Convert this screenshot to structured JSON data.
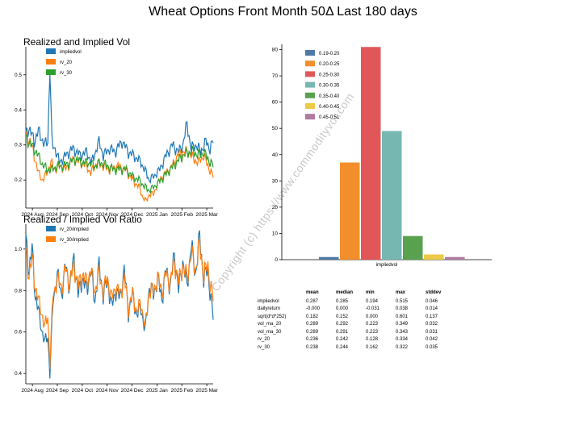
{
  "title": "Wheat Options Front Month 50Δ Last 180 days",
  "watermark": "Copyright (c) https://www.commodityvol.com",
  "colors": {
    "blue": "#1f77b4",
    "orange": "#ff7f0e",
    "green": "#2ca02c"
  },
  "chart_data": [
    {
      "type": "line",
      "title": "Realized and Implied Vol",
      "ylim": [
        0.12,
        0.58
      ],
      "yticks": [
        0.2,
        0.3,
        0.4,
        0.5
      ],
      "ytick_labels": [
        "0.2",
        "0.3",
        "0.4",
        "0.5"
      ],
      "xtick_labels": [
        "2024 Aug",
        "2024 Sep",
        "2024 Oct",
        "2024 Nov",
        "2024 Dec",
        "2025 Jan",
        "2025 Feb",
        "2025 Mar"
      ],
      "legend": [
        "impliedvol",
        "rv_20",
        "rv_30"
      ],
      "legend_position": "top-left",
      "n": 180,
      "series": [
        {
          "name": "impliedvol",
          "color": "#1f77b4",
          "anchors": [
            [
              0,
              0.33
            ],
            [
              3,
              0.35
            ],
            [
              8,
              0.31
            ],
            [
              12,
              0.34
            ],
            [
              18,
              0.3
            ],
            [
              21,
              0.31
            ],
            [
              23,
              0.52
            ],
            [
              25,
              0.3
            ],
            [
              28,
              0.29
            ],
            [
              32,
              0.25
            ],
            [
              38,
              0.27
            ],
            [
              45,
              0.29
            ],
            [
              52,
              0.27
            ],
            [
              58,
              0.28
            ],
            [
              63,
              0.25
            ],
            [
              70,
              0.31
            ],
            [
              74,
              0.27
            ],
            [
              80,
              0.29
            ],
            [
              85,
              0.28
            ],
            [
              92,
              0.31
            ],
            [
              98,
              0.28
            ],
            [
              103,
              0.27
            ],
            [
              110,
              0.25
            ],
            [
              115,
              0.22
            ],
            [
              118,
              0.2
            ],
            [
              122,
              0.21
            ],
            [
              128,
              0.23
            ],
            [
              134,
              0.27
            ],
            [
              140,
              0.3
            ],
            [
              146,
              0.28
            ],
            [
              150,
              0.3
            ],
            [
              154,
              0.36
            ],
            [
              158,
              0.29
            ],
            [
              163,
              0.3
            ],
            [
              167,
              0.28
            ],
            [
              172,
              0.31
            ],
            [
              176,
              0.29
            ],
            [
              179,
              0.31
            ]
          ]
        },
        {
          "name": "rv_20",
          "color": "#ff7f0e",
          "anchors": [
            [
              0,
              0.33
            ],
            [
              4,
              0.31
            ],
            [
              8,
              0.27
            ],
            [
              12,
              0.22
            ],
            [
              16,
              0.2
            ],
            [
              20,
              0.22
            ],
            [
              24,
              0.25
            ],
            [
              28,
              0.23
            ],
            [
              33,
              0.24
            ],
            [
              38,
              0.23
            ],
            [
              45,
              0.26
            ],
            [
              52,
              0.25
            ],
            [
              58,
              0.24
            ],
            [
              62,
              0.22
            ],
            [
              68,
              0.25
            ],
            [
              74,
              0.24
            ],
            [
              80,
              0.23
            ],
            [
              88,
              0.24
            ],
            [
              95,
              0.23
            ],
            [
              102,
              0.2
            ],
            [
              108,
              0.18
            ],
            [
              112,
              0.15
            ],
            [
              115,
              0.14
            ],
            [
              118,
              0.16
            ],
            [
              122,
              0.16
            ],
            [
              126,
              0.19
            ],
            [
              130,
              0.21
            ],
            [
              134,
              0.22
            ],
            [
              140,
              0.24
            ],
            [
              145,
              0.27
            ],
            [
              150,
              0.28
            ],
            [
              156,
              0.28
            ],
            [
              160,
              0.26
            ],
            [
              165,
              0.25
            ],
            [
              170,
              0.27
            ],
            [
              174,
              0.24
            ],
            [
              179,
              0.21
            ]
          ]
        },
        {
          "name": "rv_30",
          "color": "#2ca02c",
          "anchors": [
            [
              0,
              0.32
            ],
            [
              5,
              0.3
            ],
            [
              10,
              0.28
            ],
            [
              15,
              0.25
            ],
            [
              20,
              0.23
            ],
            [
              25,
              0.23
            ],
            [
              30,
              0.24
            ],
            [
              36,
              0.24
            ],
            [
              42,
              0.25
            ],
            [
              48,
              0.26
            ],
            [
              54,
              0.25
            ],
            [
              60,
              0.25
            ],
            [
              66,
              0.24
            ],
            [
              72,
              0.25
            ],
            [
              78,
              0.24
            ],
            [
              84,
              0.23
            ],
            [
              90,
              0.23
            ],
            [
              96,
              0.23
            ],
            [
              102,
              0.21
            ],
            [
              108,
              0.2
            ],
            [
              114,
              0.18
            ],
            [
              118,
              0.17
            ],
            [
              122,
              0.18
            ],
            [
              126,
              0.19
            ],
            [
              132,
              0.21
            ],
            [
              138,
              0.23
            ],
            [
              144,
              0.25
            ],
            [
              150,
              0.27
            ],
            [
              156,
              0.28
            ],
            [
              160,
              0.28
            ],
            [
              166,
              0.27
            ],
            [
              170,
              0.28
            ],
            [
              174,
              0.26
            ],
            [
              179,
              0.24
            ]
          ]
        }
      ]
    },
    {
      "type": "line",
      "title": "Realized / Implied Vol Ratio",
      "ylim": [
        0.35,
        1.12
      ],
      "yticks": [
        0.4,
        0.6,
        0.8,
        1.0
      ],
      "ytick_labels": [
        "0.4",
        "0.6",
        "0.8",
        "1.0"
      ],
      "xtick_labels": [
        "2024 Aug",
        "2024 Sep",
        "2024 Oct",
        "2024 Nov",
        "2024 Dec",
        "2025 Jan",
        "2025 Feb",
        "2025 Mar"
      ],
      "legend": [
        "rv_20/implied",
        "rv_30/implied"
      ],
      "legend_position": "top-left",
      "n": 180,
      "series": [
        {
          "name": "rv_20/implied",
          "color": "#1f77b4",
          "anchors": [
            [
              0,
              1.05
            ],
            [
              3,
              0.9
            ],
            [
              6,
              1.0
            ],
            [
              9,
              0.78
            ],
            [
              12,
              0.7
            ],
            [
              15,
              0.62
            ],
            [
              18,
              0.55
            ],
            [
              21,
              0.58
            ],
            [
              23,
              0.4
            ],
            [
              26,
              0.75
            ],
            [
              30,
              0.88
            ],
            [
              34,
              0.78
            ],
            [
              38,
              0.92
            ],
            [
              42,
              0.82
            ],
            [
              46,
              0.96
            ],
            [
              50,
              0.78
            ],
            [
              54,
              0.86
            ],
            [
              58,
              0.8
            ],
            [
              62,
              0.9
            ],
            [
              66,
              0.75
            ],
            [
              70,
              0.92
            ],
            [
              74,
              0.78
            ],
            [
              78,
              0.85
            ],
            [
              82,
              0.72
            ],
            [
              86,
              0.8
            ],
            [
              90,
              0.76
            ],
            [
              94,
              0.9
            ],
            [
              98,
              0.7
            ],
            [
              102,
              0.78
            ],
            [
              106,
              0.68
            ],
            [
              110,
              0.72
            ],
            [
              114,
              0.6
            ],
            [
              118,
              0.82
            ],
            [
              122,
              0.78
            ],
            [
              126,
              0.86
            ],
            [
              130,
              0.76
            ],
            [
              134,
              0.9
            ],
            [
              138,
              0.82
            ],
            [
              142,
              0.98
            ],
            [
              146,
              0.8
            ],
            [
              150,
              0.94
            ],
            [
              154,
              0.82
            ],
            [
              158,
              1.02
            ],
            [
              162,
              0.88
            ],
            [
              166,
              1.06
            ],
            [
              170,
              0.86
            ],
            [
              174,
              0.9
            ],
            [
              176,
              0.8
            ],
            [
              179,
              0.67
            ]
          ]
        },
        {
          "name": "rv_30/implied",
          "color": "#ff7f0e",
          "anchors": [
            [
              0,
              0.98
            ],
            [
              3,
              0.88
            ],
            [
              6,
              0.95
            ],
            [
              9,
              0.82
            ],
            [
              12,
              0.75
            ],
            [
              15,
              0.7
            ],
            [
              18,
              0.62
            ],
            [
              21,
              0.68
            ],
            [
              23,
              0.45
            ],
            [
              26,
              0.78
            ],
            [
              30,
              0.85
            ],
            [
              34,
              0.82
            ],
            [
              38,
              0.9
            ],
            [
              42,
              0.84
            ],
            [
              46,
              0.92
            ],
            [
              50,
              0.82
            ],
            [
              54,
              0.88
            ],
            [
              58,
              0.84
            ],
            [
              62,
              0.9
            ],
            [
              66,
              0.8
            ],
            [
              70,
              0.88
            ],
            [
              74,
              0.8
            ],
            [
              78,
              0.86
            ],
            [
              82,
              0.76
            ],
            [
              86,
              0.82
            ],
            [
              90,
              0.78
            ],
            [
              94,
              0.86
            ],
            [
              98,
              0.72
            ],
            [
              102,
              0.78
            ],
            [
              106,
              0.7
            ],
            [
              110,
              0.74
            ],
            [
              114,
              0.62
            ],
            [
              118,
              0.8
            ],
            [
              122,
              0.8
            ],
            [
              126,
              0.86
            ],
            [
              130,
              0.8
            ],
            [
              134,
              0.88
            ],
            [
              138,
              0.84
            ],
            [
              142,
              0.94
            ],
            [
              146,
              0.84
            ],
            [
              150,
              0.92
            ],
            [
              154,
              0.86
            ],
            [
              158,
              0.98
            ],
            [
              162,
              0.9
            ],
            [
              166,
              1.02
            ],
            [
              170,
              0.88
            ],
            [
              174,
              0.92
            ],
            [
              176,
              0.84
            ],
            [
              179,
              0.76
            ]
          ]
        }
      ]
    },
    {
      "type": "bar",
      "title": "",
      "xlabel": "impliedvol",
      "ylim": [
        0,
        82
      ],
      "yticks": [
        0,
        10,
        20,
        30,
        40,
        50,
        60,
        70,
        80
      ],
      "legend_position": "top-left",
      "categories": [
        "0.19-0.20",
        "0.20-0.25",
        "0.25-0.30",
        "0.30-0.35",
        "0.35-0.40",
        "0.40-0.45",
        "0.45-0.51"
      ],
      "values": [
        1,
        37,
        81,
        49,
        9,
        2,
        1
      ],
      "bar_colors": [
        "#4e79a7",
        "#f28e2b",
        "#e15759",
        "#76b7b2",
        "#59a14f",
        "#edc948",
        "#b07aa1"
      ]
    }
  ],
  "stats": {
    "headers": [
      "",
      "mean",
      "median",
      "min",
      "max",
      "stddev"
    ],
    "rows": [
      [
        "impliedvol",
        "0.287",
        "0.285",
        "0.194",
        "0.515",
        "0.046"
      ],
      [
        "dailyreturn",
        "-0.000",
        "0.000",
        "-0.031",
        "0.038",
        "0.014"
      ],
      [
        "sqrt(d*d*252)",
        "0.182",
        "0.152",
        "0.000",
        "0.601",
        "0.137"
      ],
      [
        "vol_ma_20",
        "0.289",
        "0.292",
        "0.223",
        "0.349",
        "0.032"
      ],
      [
        "vol_ma_30",
        "0.289",
        "0.291",
        "0.223",
        "0.343",
        "0.031"
      ],
      [
        "rv_20",
        "0.236",
        "0.242",
        "0.128",
        "0.334",
        "0.042"
      ],
      [
        "rv_30",
        "0.238",
        "0.244",
        "0.162",
        "0.322",
        "0.035"
      ]
    ]
  }
}
